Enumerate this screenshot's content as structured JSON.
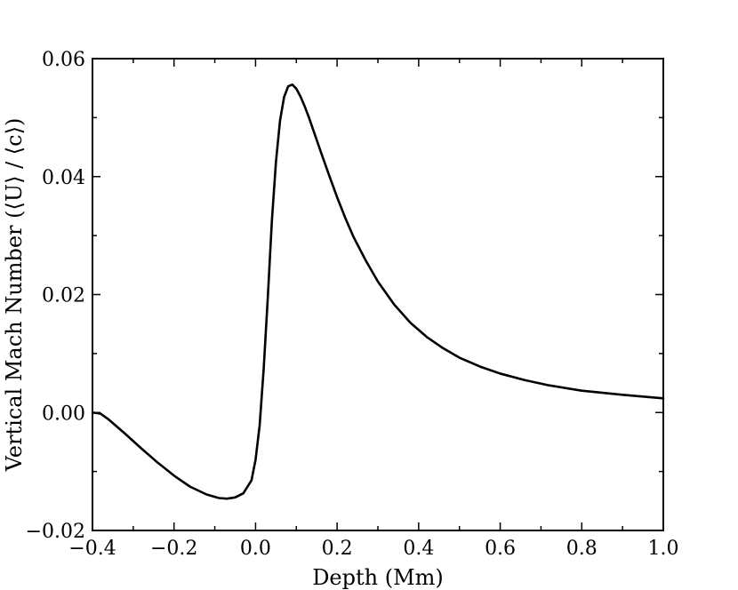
{
  "chart_data": {
    "type": "line",
    "title": "",
    "xlabel": "Depth (Mm)",
    "ylabel": "Vertical Mach Number (⟨U⟩ / ⟨c⟩)",
    "xlim": [
      -0.4,
      1.0
    ],
    "ylim": [
      -0.02,
      0.06
    ],
    "grid": false,
    "x_ticks": [
      -0.4,
      -0.2,
      0.0,
      0.2,
      0.4,
      0.6,
      0.8,
      1.0
    ],
    "x_tick_labels": [
      "−0.4",
      "−0.2",
      "0.0",
      "0.2",
      "0.4",
      "0.6",
      "0.8",
      "1.0"
    ],
    "y_ticks": [
      -0.02,
      0.0,
      0.02,
      0.04,
      0.06
    ],
    "y_tick_labels": [
      "−0.02",
      "0.00",
      "0.02",
      "0.04",
      "0.06"
    ],
    "series": [
      {
        "color": "#000000",
        "x": [
          -0.4,
          -0.38,
          -0.36,
          -0.32,
          -0.28,
          -0.24,
          -0.2,
          -0.16,
          -0.12,
          -0.09,
          -0.07,
          -0.05,
          -0.03,
          -0.01,
          0.0,
          0.01,
          0.02,
          0.03,
          0.04,
          0.05,
          0.06,
          0.07,
          0.08,
          0.09,
          0.1,
          0.11,
          0.12,
          0.13,
          0.14,
          0.16,
          0.18,
          0.2,
          0.22,
          0.24,
          0.27,
          0.3,
          0.34,
          0.38,
          0.42,
          0.46,
          0.5,
          0.55,
          0.6,
          0.66,
          0.72,
          0.8,
          0.9,
          1.0
        ],
        "y": [
          0.0,
          -0.0002,
          -0.0012,
          -0.0036,
          -0.0061,
          -0.0085,
          -0.0107,
          -0.0126,
          -0.0139,
          -0.0145,
          -0.0146,
          -0.0144,
          -0.0137,
          -0.0115,
          -0.008,
          -0.0022,
          0.0075,
          0.0195,
          0.0325,
          0.0425,
          0.0495,
          0.0535,
          0.0553,
          0.0556,
          0.0549,
          0.0536,
          0.052,
          0.0502,
          0.0482,
          0.0442,
          0.0403,
          0.0365,
          0.033,
          0.0298,
          0.0258,
          0.0222,
          0.0183,
          0.0152,
          0.0128,
          0.0109,
          0.0093,
          0.0078,
          0.0066,
          0.0055,
          0.0046,
          0.0037,
          0.003,
          0.0024
        ]
      }
    ]
  }
}
